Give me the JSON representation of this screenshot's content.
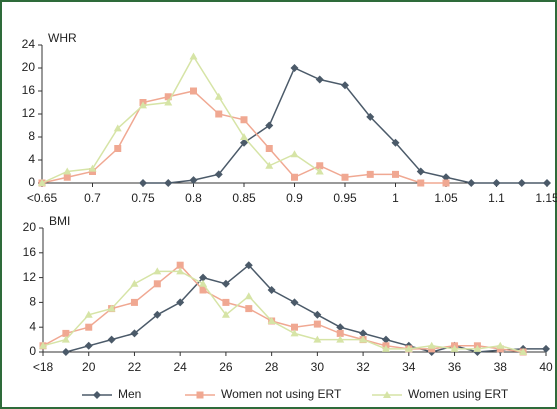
{
  "chart_data": [
    {
      "type": "line",
      "annotation": "WHR",
      "categories": [
        "<0.65",
        null,
        "0.7",
        null,
        "0.75",
        null,
        "0.8",
        null,
        "0.85",
        null,
        "0.9",
        null,
        "0.95",
        null,
        "1",
        null,
        "1.05",
        null,
        "1.1",
        null,
        "1.15"
      ],
      "ylim": [
        0,
        24
      ],
      "yticks": [
        0,
        4,
        8,
        12,
        16,
        20,
        24
      ],
      "series": [
        {
          "name": "Men",
          "color": "#4b5a69",
          "marker": "diamond",
          "values": [
            null,
            null,
            null,
            null,
            0,
            0,
            0.5,
            1.5,
            7,
            10,
            20,
            18,
            17,
            11.5,
            7,
            2,
            1,
            0,
            0,
            0,
            0
          ]
        },
        {
          "name": "Women not using ERT",
          "color": "#f0a892",
          "marker": "square",
          "values": [
            0,
            1,
            2,
            6,
            14,
            15,
            16,
            12,
            11,
            6,
            1,
            3,
            1,
            1.5,
            1.5,
            0,
            0,
            null,
            null,
            null,
            null
          ]
        },
        {
          "name": "Women using ERT",
          "color": "#d6e4a6",
          "marker": "triangle",
          "values": [
            0,
            2,
            2.5,
            9.5,
            13.5,
            14,
            22,
            15,
            8,
            3,
            5,
            2,
            null,
            null,
            null,
            null,
            null,
            null,
            null,
            null,
            null
          ]
        }
      ]
    },
    {
      "type": "line",
      "annotation": "BMI",
      "categories": [
        "<18",
        null,
        "20",
        null,
        "22",
        null,
        "24",
        null,
        "26",
        null,
        "28",
        null,
        "30",
        null,
        "32",
        null,
        "34",
        null,
        "36",
        null,
        "38",
        null,
        "40"
      ],
      "ylim": [
        0,
        20
      ],
      "yticks": [
        0,
        4,
        8,
        12,
        16,
        20
      ],
      "series": [
        {
          "color": "#4b5a69",
          "marker": "diamond",
          "values": [
            null,
            0,
            1,
            2,
            3,
            6,
            8,
            12,
            11,
            14,
            10,
            8,
            6,
            4,
            3,
            2,
            1,
            0,
            1,
            0,
            0.3,
            0.5,
            0.5
          ]
        },
        {
          "color": "#f0a892",
          "marker": "square",
          "values": [
            1,
            3,
            4,
            7,
            8,
            11,
            14,
            10,
            8,
            7,
            5,
            4,
            4.5,
            3,
            2,
            1,
            0.5,
            0.5,
            1,
            1,
            0.5,
            0,
            null
          ]
        },
        {
          "color": "#d6e4a6",
          "marker": "triangle",
          "values": [
            1,
            2,
            6,
            7,
            11,
            13,
            13,
            11,
            6,
            9,
            5,
            3,
            2,
            2,
            2,
            0.5,
            0.5,
            1,
            0.5,
            0.5,
            1,
            0,
            null
          ]
        }
      ]
    }
  ]
}
